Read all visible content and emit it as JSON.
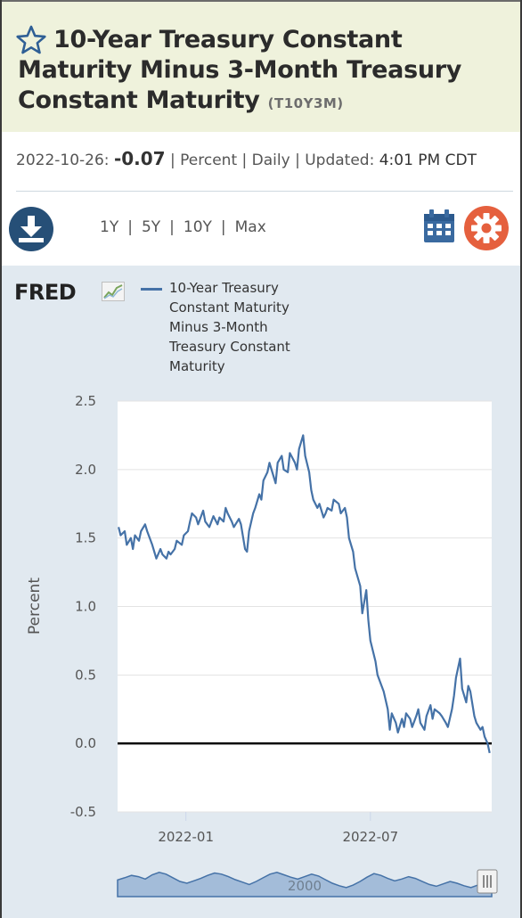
{
  "series": {
    "title": "10-Year Treasury Constant Maturity Minus 3-Month Treasury Constant Maturity",
    "id": "(T10Y3M)"
  },
  "observation": {
    "date": "2022-10-26:",
    "value": "-0.07",
    "units": "Percent",
    "frequency": "Daily",
    "updated_label": "Updated:",
    "updated_time": "4:01 PM CDT",
    "separator": "|"
  },
  "toolbar": {
    "ranges": [
      "1Y",
      "5Y",
      "10Y",
      "Max"
    ],
    "download_icon": "download-icon",
    "calendar_icon": "calendar-icon",
    "settings_icon": "gear-icon"
  },
  "brand": {
    "logo": "FRED",
    "icon": "fred-chart-icon"
  },
  "colors": {
    "line": "#4572a7",
    "title_band": "#eff2dc",
    "chart_background": "#e1e9f0",
    "download_button": "#264f77",
    "calendar": "#3a6aa0",
    "settings": "#e5603e"
  },
  "chart_data": {
    "type": "line",
    "legend_placement": "top",
    "grid": true,
    "xlabel": "",
    "ylabel": "Percent",
    "ylim": [
      -0.5,
      2.5
    ],
    "yticks": [
      "2.5",
      "2.0",
      "1.5",
      "1.0",
      "0.5",
      "0.0",
      "-0.5"
    ],
    "xticks": [
      "2022-01",
      "2022-07"
    ],
    "navigator_label": "2000",
    "zero_line": true,
    "series": [
      {
        "name": "10-Year Treasury Constant Maturity Minus 3-Month Treasury Constant Maturity",
        "x": [
          "2021-10-27",
          "2021-10-29",
          "2021-11-02",
          "2021-11-04",
          "2021-11-08",
          "2021-11-10",
          "2021-11-12",
          "2021-11-16",
          "2021-11-18",
          "2021-11-22",
          "2021-11-24",
          "2021-11-29",
          "2021-12-01",
          "2021-12-03",
          "2021-12-07",
          "2021-12-09",
          "2021-12-13",
          "2021-12-15",
          "2021-12-17",
          "2021-12-21",
          "2021-12-23",
          "2021-12-28",
          "2021-12-30",
          "2022-01-03",
          "2022-01-05",
          "2022-01-07",
          "2022-01-11",
          "2022-01-13",
          "2022-01-18",
          "2022-01-20",
          "2022-01-24",
          "2022-01-26",
          "2022-01-28",
          "2022-02-01",
          "2022-02-03",
          "2022-02-07",
          "2022-02-09",
          "2022-02-11",
          "2022-02-15",
          "2022-02-17",
          "2022-02-22",
          "2022-02-24",
          "2022-02-28",
          "2022-03-02",
          "2022-03-04",
          "2022-03-08",
          "2022-03-10",
          "2022-03-14",
          "2022-03-16",
          "2022-03-18",
          "2022-03-22",
          "2022-03-24",
          "2022-03-28",
          "2022-03-30",
          "2022-04-01",
          "2022-04-05",
          "2022-04-07",
          "2022-04-11",
          "2022-04-13",
          "2022-04-18",
          "2022-04-20",
          "2022-04-22",
          "2022-04-26",
          "2022-04-28",
          "2022-05-02",
          "2022-05-04",
          "2022-05-06",
          "2022-05-10",
          "2022-05-12",
          "2022-05-16",
          "2022-05-18",
          "2022-05-20",
          "2022-05-24",
          "2022-05-26",
          "2022-05-31",
          "2022-06-02",
          "2022-06-06",
          "2022-06-08",
          "2022-06-10",
          "2022-06-14",
          "2022-06-16",
          "2022-06-21",
          "2022-06-23",
          "2022-06-27",
          "2022-06-29",
          "2022-07-01",
          "2022-07-06",
          "2022-07-08",
          "2022-07-12",
          "2022-07-14",
          "2022-07-18",
          "2022-07-20",
          "2022-07-22",
          "2022-07-26",
          "2022-07-28",
          "2022-08-01",
          "2022-08-03",
          "2022-08-05",
          "2022-08-09",
          "2022-08-11",
          "2022-08-15",
          "2022-08-17",
          "2022-08-19",
          "2022-08-23",
          "2022-08-25",
          "2022-08-29",
          "2022-08-31",
          "2022-09-02",
          "2022-09-07",
          "2022-09-09",
          "2022-09-13",
          "2022-09-15",
          "2022-09-19",
          "2022-09-21",
          "2022-09-23",
          "2022-09-27",
          "2022-09-29",
          "2022-10-03",
          "2022-10-05",
          "2022-10-07",
          "2022-10-11",
          "2022-10-13",
          "2022-10-17",
          "2022-10-19",
          "2022-10-21",
          "2022-10-24",
          "2022-10-26"
        ],
        "values": [
          1.58,
          1.52,
          1.55,
          1.45,
          1.5,
          1.42,
          1.52,
          1.48,
          1.55,
          1.6,
          1.55,
          1.45,
          1.4,
          1.35,
          1.42,
          1.38,
          1.35,
          1.4,
          1.38,
          1.42,
          1.48,
          1.45,
          1.52,
          1.55,
          1.62,
          1.68,
          1.65,
          1.6,
          1.7,
          1.62,
          1.58,
          1.62,
          1.66,
          1.6,
          1.65,
          1.62,
          1.72,
          1.68,
          1.62,
          1.58,
          1.64,
          1.6,
          1.42,
          1.4,
          1.55,
          1.68,
          1.72,
          1.82,
          1.78,
          1.92,
          1.98,
          2.05,
          1.95,
          1.9,
          2.05,
          2.1,
          2.0,
          1.98,
          2.12,
          2.05,
          2.0,
          2.15,
          2.25,
          2.1,
          1.98,
          1.85,
          1.78,
          1.72,
          1.75,
          1.65,
          1.68,
          1.72,
          1.7,
          1.78,
          1.75,
          1.68,
          1.72,
          1.65,
          1.5,
          1.4,
          1.28,
          1.15,
          0.95,
          1.12,
          0.9,
          0.75,
          0.6,
          0.5,
          0.42,
          0.38,
          0.25,
          0.1,
          0.22,
          0.15,
          0.08,
          0.18,
          0.12,
          0.22,
          0.18,
          0.12,
          0.2,
          0.25,
          0.15,
          0.1,
          0.2,
          0.28,
          0.18,
          0.25,
          0.22,
          0.2,
          0.15,
          0.12,
          0.25,
          0.35,
          0.48,
          0.62,
          0.4,
          0.3,
          0.42,
          0.38,
          0.2,
          0.15,
          0.1,
          0.12,
          0.05,
          0.0,
          -0.07
        ]
      }
    ]
  }
}
